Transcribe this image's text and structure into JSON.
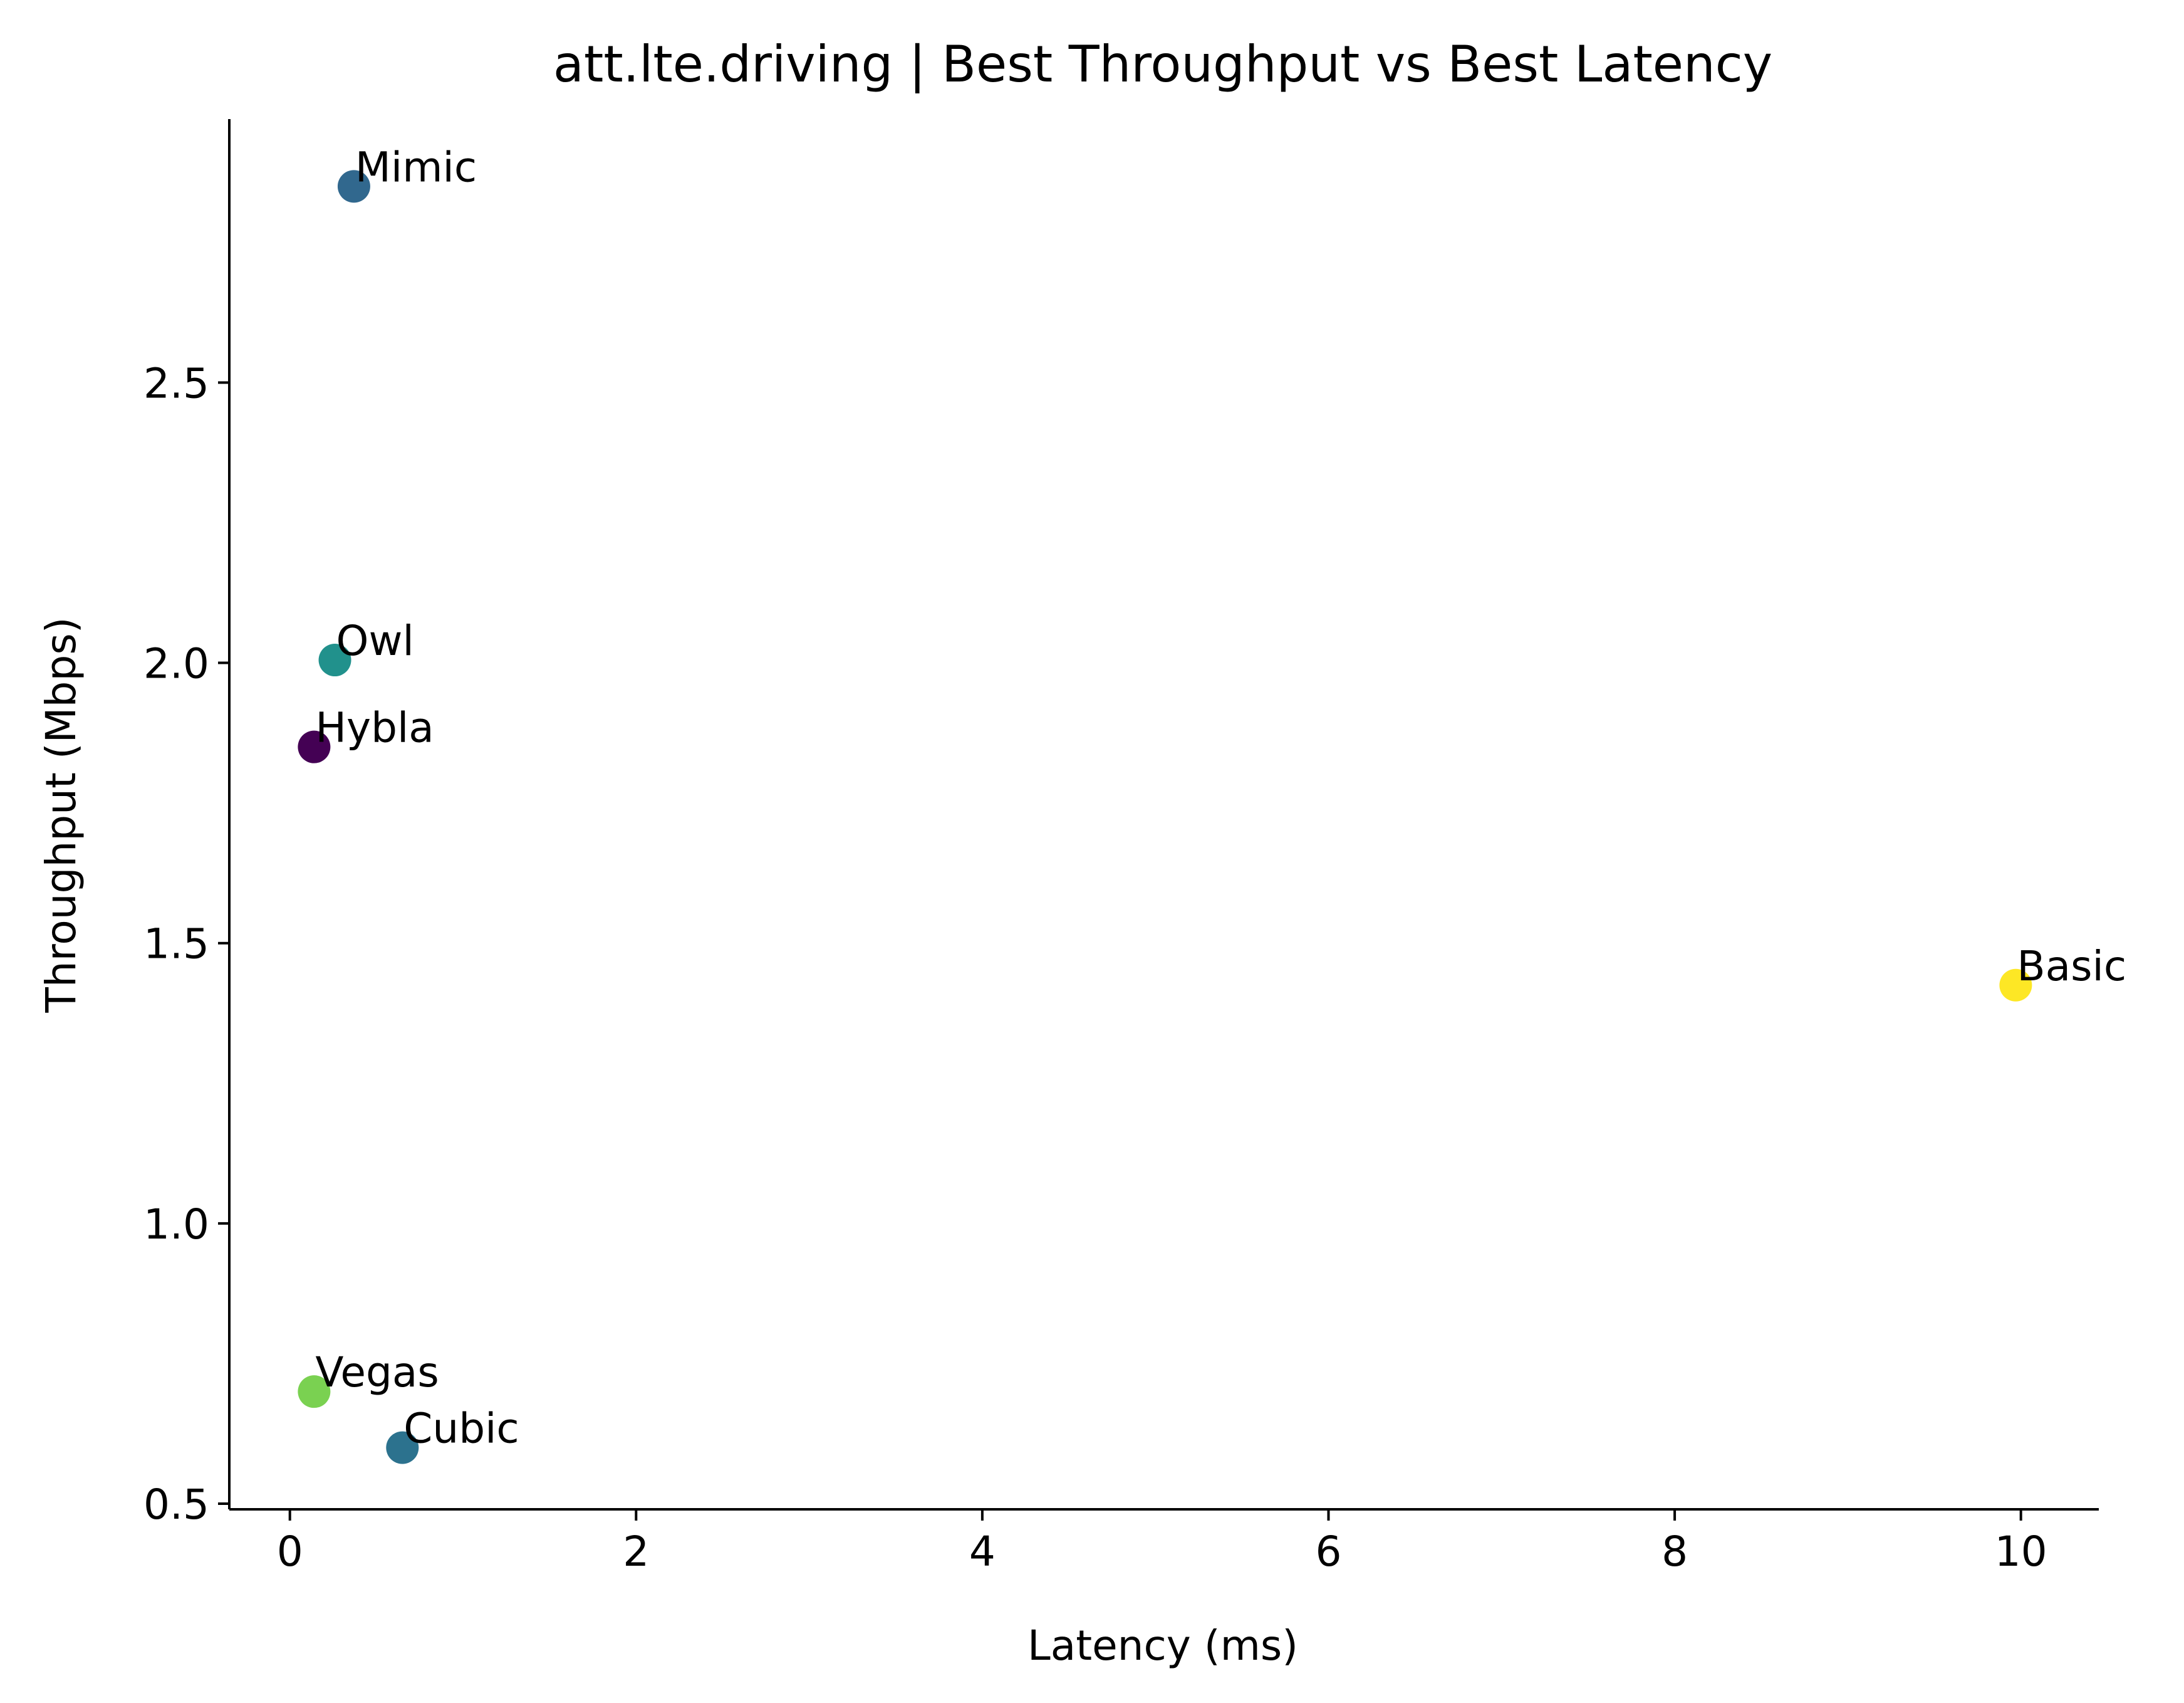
{
  "chart_data": {
    "type": "scatter",
    "title": "att.lte.driving | Best Throughput vs Best Latency",
    "xlabel": "Latency (ms)",
    "ylabel": "Throughput (Mbps)",
    "xlim": [
      -0.35,
      10.45
    ],
    "ylim": [
      0.49,
      2.97
    ],
    "xticks": [
      0,
      2,
      4,
      6,
      8,
      10
    ],
    "xtick_labels": [
      "0",
      "2",
      "4",
      "6",
      "8",
      "10"
    ],
    "yticks": [
      0.5,
      1.0,
      1.5,
      2.0,
      2.5
    ],
    "ytick_labels": [
      "0.5",
      "1.0",
      "1.5",
      "2.0",
      "2.5"
    ],
    "grid": false,
    "points": [
      {
        "label": "Mimic",
        "x": 0.37,
        "y": 2.85,
        "color": "#31688e"
      },
      {
        "label": "Owl",
        "x": 0.26,
        "y": 2.005,
        "color": "#21918c"
      },
      {
        "label": "Hybla",
        "x": 0.14,
        "y": 1.85,
        "color": "#440154"
      },
      {
        "label": "Basic",
        "x": 9.97,
        "y": 1.425,
        "color": "#fde725"
      },
      {
        "label": "Vegas",
        "x": 0.14,
        "y": 0.7,
        "color": "#7ad151"
      },
      {
        "label": "Cubic",
        "x": 0.65,
        "y": 0.6,
        "color": "#2c728e"
      }
    ]
  }
}
